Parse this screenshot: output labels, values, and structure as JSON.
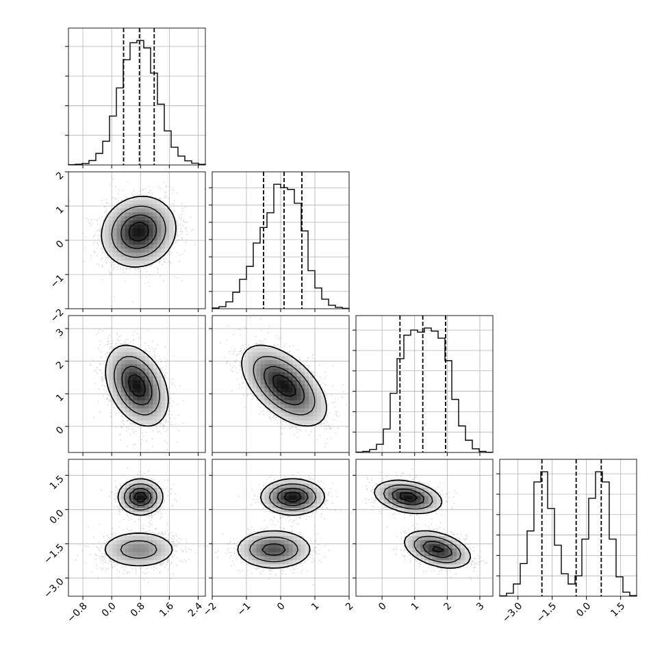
{
  "chart_data": {
    "type": "corner",
    "parameters": [
      {
        "name": "",
        "range": [
          -1.2,
          2.6
        ],
        "ticks": [
          -0.8,
          0.0,
          0.8,
          1.6,
          2.4
        ],
        "tick_labels": [
          "−0.8",
          "0.0",
          "0.8",
          "1.6",
          "2.4"
        ],
        "quantiles": [
          0.33,
          0.77,
          1.18
        ],
        "histogram": {
          "bin_edges": [
            -1.2,
            -1.01,
            -0.82,
            -0.63,
            -0.44,
            -0.25,
            -0.06,
            0.13,
            0.32,
            0.51,
            0.7,
            0.89,
            1.08,
            1.27,
            1.46,
            1.65,
            1.84,
            2.03,
            2.22,
            2.41,
            2.6
          ],
          "counts": [
            2,
            5,
            10,
            30,
            78,
            160,
            330,
            520,
            710,
            825,
            840,
            790,
            620,
            410,
            230,
            120,
            60,
            28,
            12,
            4
          ]
        }
      },
      {
        "name": "",
        "range": [
          -2.0,
          2.0
        ],
        "ticks": [
          -2,
          -1,
          0,
          1,
          2
        ],
        "tick_labels": [
          "−2",
          "−1",
          "0",
          "1",
          "2"
        ],
        "quantiles": [
          -0.5,
          0.1,
          0.62
        ],
        "histogram": {
          "bin_edges": [
            -2.0,
            -1.8,
            -1.6,
            -1.4,
            -1.2,
            -1.0,
            -0.8,
            -0.6,
            -0.4,
            -0.2,
            0.0,
            0.2,
            0.4,
            0.6,
            0.8,
            1.0,
            1.2,
            1.4,
            1.6,
            1.8,
            2.0
          ],
          "counts": [
            4,
            12,
            40,
            95,
            170,
            245,
            380,
            470,
            555,
            720,
            700,
            690,
            610,
            450,
            220,
            120,
            55,
            20,
            8,
            2
          ]
        }
      },
      {
        "name": "",
        "range": [
          -0.8,
          3.4
        ],
        "ticks": [
          0,
          1,
          2,
          3
        ],
        "tick_labels": [
          "0",
          "1",
          "2",
          "3"
        ],
        "quantiles": [
          0.55,
          1.25,
          1.95
        ],
        "histogram": {
          "bin_edges": [
            -0.8,
            -0.59,
            -0.38,
            -0.17,
            0.04,
            0.25,
            0.46,
            0.67,
            0.88,
            1.09,
            1.3,
            1.51,
            1.72,
            1.93,
            2.14,
            2.35,
            2.56,
            2.77,
            2.98,
            3.19,
            3.4
          ],
          "counts": [
            2,
            5,
            15,
            40,
            115,
            290,
            460,
            575,
            600,
            590,
            610,
            595,
            560,
            450,
            260,
            130,
            60,
            18,
            5,
            1
          ]
        }
      },
      {
        "name": "",
        "range": [
          -3.8,
          2.2
        ],
        "ticks": [
          -3.0,
          -1.5,
          0.0,
          1.5
        ],
        "tick_labels": [
          "−3.0",
          "−1.5",
          "0.0",
          "1.5"
        ],
        "quantiles": [
          -1.95,
          -0.45,
          0.65
        ],
        "histogram": {
          "bin_edges": [
            -3.8,
            -3.5,
            -3.2,
            -2.9,
            -2.6,
            -2.3,
            -2.0,
            -1.7,
            -1.4,
            -1.1,
            -0.8,
            -0.5,
            -0.2,
            0.1,
            0.4,
            0.7,
            1.0,
            1.3,
            1.6,
            1.9,
            2.2
          ],
          "counts": [
            2,
            15,
            60,
            160,
            320,
            560,
            610,
            430,
            250,
            110,
            60,
            100,
            280,
            480,
            610,
            560,
            280,
            95,
            20,
            3
          ]
        }
      }
    ],
    "pairs": [
      {
        "x": 0,
        "y": 1,
        "components": [
          {
            "mean": [
              0.75,
              0.25
            ],
            "sd": [
              0.5,
              0.5
            ],
            "corr": 0.1,
            "weight": 1.0
          }
        ]
      },
      {
        "x": 0,
        "y": 2,
        "components": [
          {
            "mean": [
              0.7,
              1.25
            ],
            "sd": [
              0.42,
              0.6
            ],
            "corr": -0.35,
            "weight": 1.0
          }
        ]
      },
      {
        "x": 1,
        "y": 2,
        "components": [
          {
            "mean": [
              0.1,
              1.25
            ],
            "sd": [
              0.6,
              0.6
            ],
            "corr": -0.55,
            "weight": 1.0
          }
        ]
      },
      {
        "x": 0,
        "y": 3,
        "components": [
          {
            "mean": [
              0.8,
              0.55
            ],
            "sd": [
              0.3,
              0.38
            ],
            "corr": 0.0,
            "weight": 0.5
          },
          {
            "mean": [
              0.75,
              -1.75
            ],
            "sd": [
              0.55,
              0.42
            ],
            "corr": 0.0,
            "weight": 0.5
          }
        ]
      },
      {
        "x": 1,
        "y": 3,
        "components": [
          {
            "mean": [
              0.35,
              0.55
            ],
            "sd": [
              0.45,
              0.38
            ],
            "corr": 0.0,
            "weight": 0.5
          },
          {
            "mean": [
              -0.2,
              -1.75
            ],
            "sd": [
              0.55,
              0.42
            ],
            "corr": 0.0,
            "weight": 0.5
          }
        ]
      },
      {
        "x": 2,
        "y": 3,
        "components": [
          {
            "mean": [
              0.8,
              0.55
            ],
            "sd": [
              0.5,
              0.35
            ],
            "corr": -0.3,
            "weight": 0.5
          },
          {
            "mean": [
              1.7,
              -1.75
            ],
            "sd": [
              0.5,
              0.4
            ],
            "corr": -0.4,
            "weight": 0.5
          }
        ]
      }
    ],
    "style": {
      "line_color": "#000000",
      "point_color": "#9a9a9a",
      "grid_color": "#b0b0b0",
      "quantile_line": "dashed",
      "grid": true
    }
  }
}
